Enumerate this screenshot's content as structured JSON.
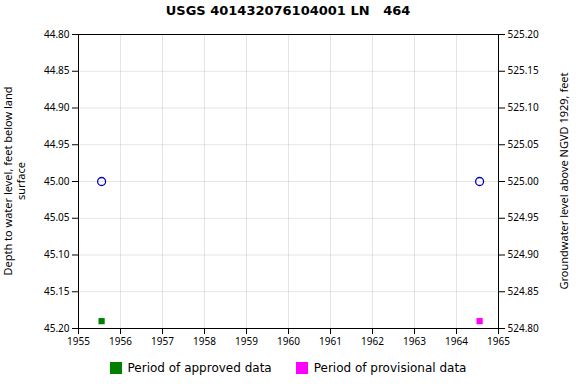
{
  "chart_data": {
    "type": "scatter",
    "title": "USGS 401432076104001 LN   464",
    "xlim": [
      1955,
      1965
    ],
    "xticks": [
      1955,
      1956,
      1957,
      1958,
      1959,
      1960,
      1961,
      1962,
      1963,
      1964,
      1965
    ],
    "ylim": [
      45.2,
      44.8
    ],
    "yticks": [
      {
        "value": 44.8,
        "label": "44.80"
      },
      {
        "value": 44.85,
        "label": "44.85"
      },
      {
        "value": 44.9,
        "label": "44.90"
      },
      {
        "value": 44.95,
        "label": "44.95"
      },
      {
        "value": 45.0,
        "label": "45.00"
      },
      {
        "value": 45.05,
        "label": "45.05"
      },
      {
        "value": 45.1,
        "label": "45.10"
      },
      {
        "value": 45.15,
        "label": "45.15"
      },
      {
        "value": 45.2,
        "label": "45.20"
      }
    ],
    "y2lim": [
      524.8,
      525.2
    ],
    "y2ticks": [
      {
        "value": 525.2,
        "label": "525.20"
      },
      {
        "value": 525.15,
        "label": "525.15"
      },
      {
        "value": 525.1,
        "label": "525.10"
      },
      {
        "value": 525.05,
        "label": "525.05"
      },
      {
        "value": 525.0,
        "label": "525.00"
      },
      {
        "value": 524.95,
        "label": "524.95"
      },
      {
        "value": 524.9,
        "label": "524.90"
      },
      {
        "value": 524.85,
        "label": "524.85"
      },
      {
        "value": 524.8,
        "label": "524.80"
      }
    ],
    "ylabel": "Depth to water level, feet below land\nsurface",
    "y2label": "Groundwater level above NGVD 1929, feet",
    "grid": true,
    "legend": "bottom",
    "series": [
      {
        "color": "#0000cc",
        "marker": "circle",
        "x": [
          1955.55
        ],
        "values": [
          45.0
        ]
      },
      {
        "color": "#0000cc",
        "marker": "circle",
        "x": [
          1964.55
        ],
        "values": [
          45.0
        ]
      },
      {
        "name": "Period of approved data",
        "color": "#008000",
        "marker": "square",
        "x": [
          1955.55
        ],
        "values": [
          45.19
        ]
      },
      {
        "name": "Period of provisional data",
        "color": "#ff00ff",
        "marker": "square",
        "x": [
          1964.55
        ],
        "values": [
          45.19
        ]
      }
    ]
  }
}
